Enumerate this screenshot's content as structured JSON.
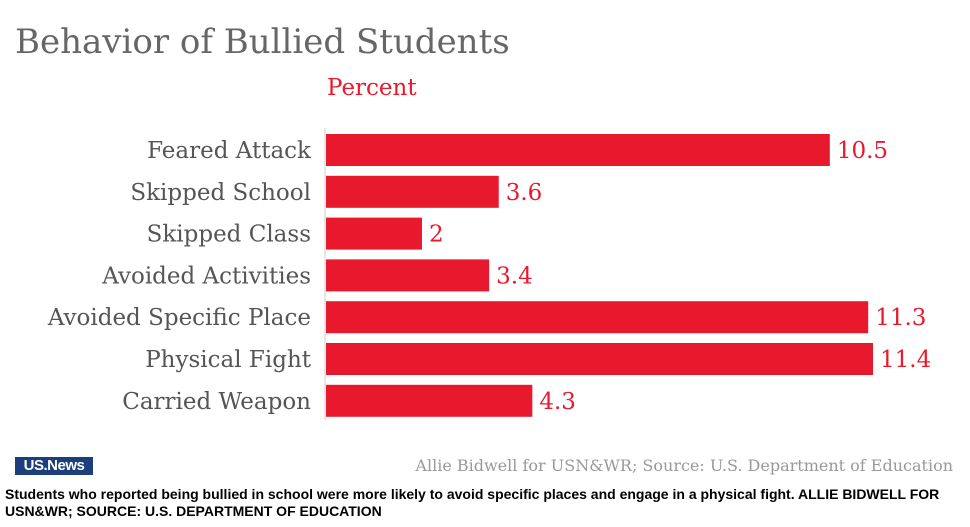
{
  "chart_data": {
    "type": "bar",
    "orientation": "horizontal",
    "title": "Behavior of Bullied Students",
    "subtitle": "Percent",
    "categories": [
      "Feared Attack",
      "Skipped School",
      "Skipped Class",
      "Avoided Activities",
      "Avoided Specific Place",
      "Physical Fight",
      "Carried Weapon"
    ],
    "values": [
      10.5,
      3.6,
      2,
      3.4,
      11.3,
      11.4,
      4.3
    ],
    "value_labels": [
      "10.5",
      "3.6",
      "2",
      "3.4",
      "11.3",
      "11.4",
      "4.3"
    ],
    "xlim": [
      0,
      11.4
    ],
    "bar_color": "#e8192c",
    "grid": false
  },
  "footer": {
    "logo_text": "US.News",
    "source": "Allie Bidwell for USN&WR; Source: U.S. Department of Education"
  },
  "caption": "Students who reported being bullied in school were more likely to avoid specific places and engage in a physical fight. ALLIE BIDWELL FOR USN&WR; SOURCE: U.S. DEPARTMENT OF EDUCATION"
}
